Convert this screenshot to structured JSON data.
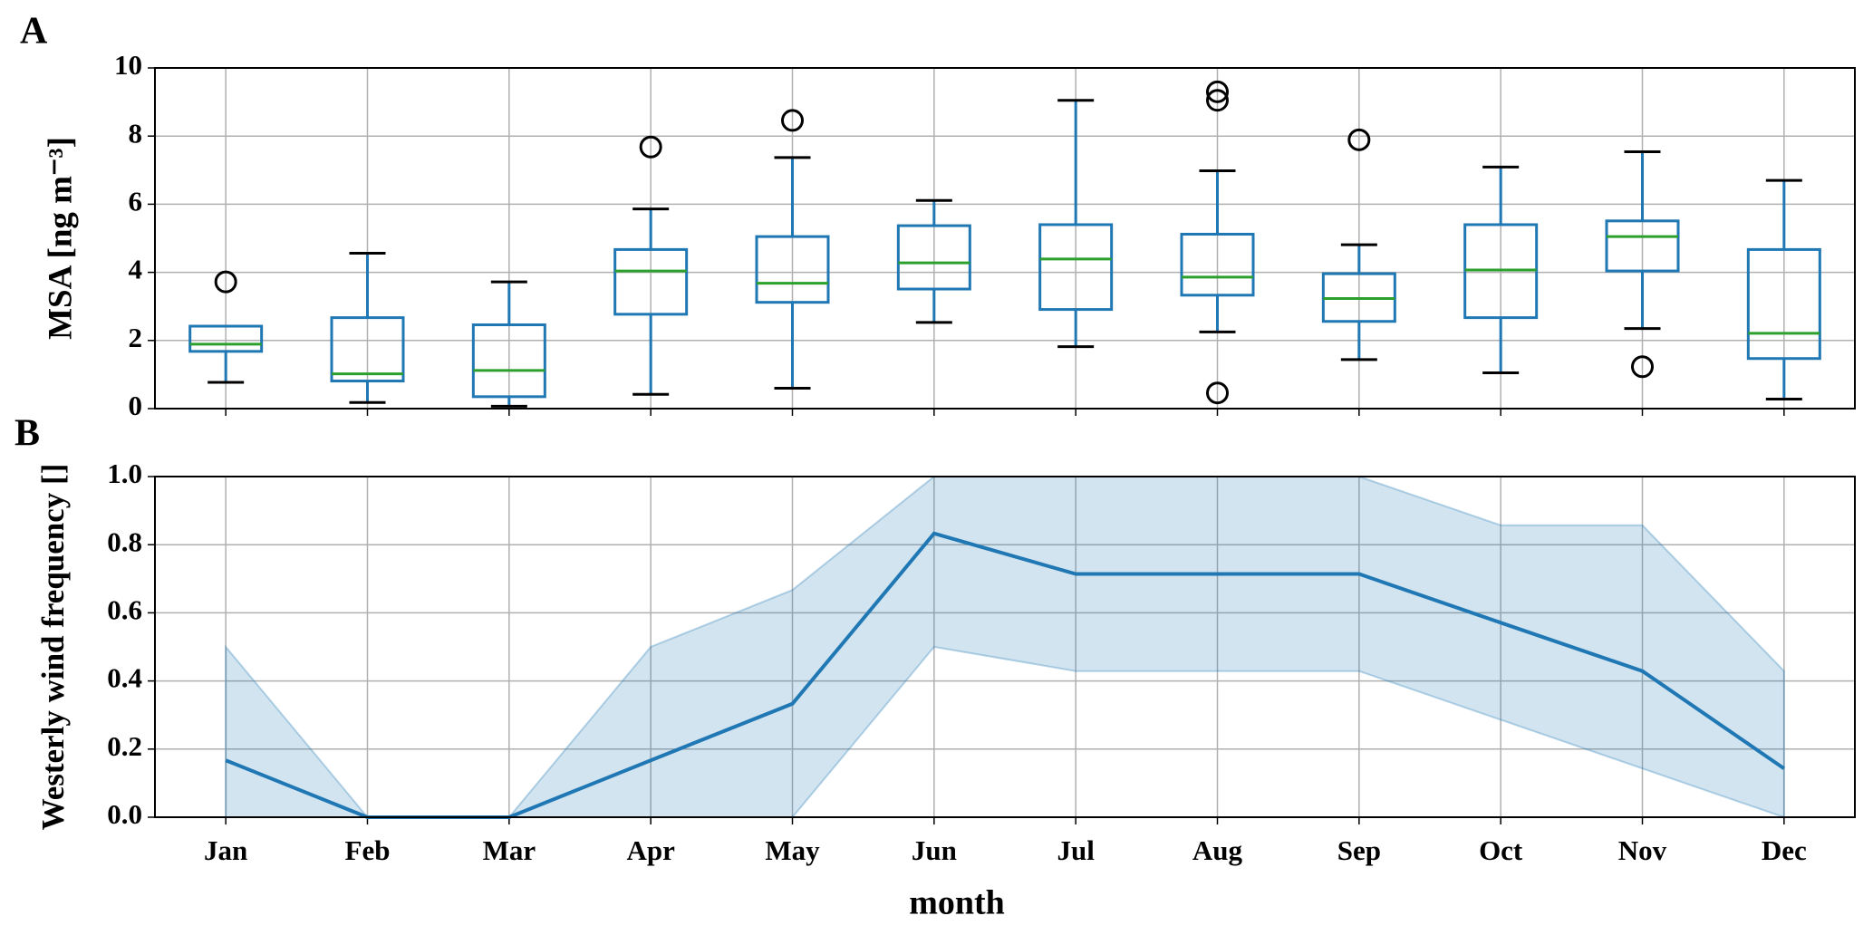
{
  "chart_data": [
    {
      "type": "box",
      "panel_label": "A",
      "ylabel": "MSA [ng m⁻³]",
      "ylim": [
        0,
        10
      ],
      "yticks": [
        0,
        2,
        4,
        6,
        8,
        10
      ],
      "grid": true,
      "color": "#1f77b4",
      "median_color": "#2ca02c",
      "cap_color": "#000000",
      "flier_color": "#000000",
      "boxes": [
        {
          "whislo": 0.77,
          "q1": 1.68,
          "med": 1.89,
          "q3": 2.42,
          "whishi": 2.42,
          "fliers": [
            3.72
          ]
        },
        {
          "whislo": 0.18,
          "q1": 0.81,
          "med": 1.02,
          "q3": 2.67,
          "whishi": 4.56,
          "fliers": []
        },
        {
          "whislo": 0.07,
          "q1": 0.35,
          "med": 1.12,
          "q3": 2.46,
          "whishi": 3.72,
          "fliers": []
        },
        {
          "whislo": 0.42,
          "q1": 2.77,
          "med": 4.04,
          "q3": 4.67,
          "whishi": 5.86,
          "fliers": [
            7.68
          ]
        },
        {
          "whislo": 0.6,
          "q1": 3.12,
          "med": 3.68,
          "q3": 5.05,
          "whishi": 7.37,
          "fliers": [
            8.46
          ]
        },
        {
          "whislo": 2.53,
          "q1": 3.51,
          "med": 4.28,
          "q3": 5.37,
          "whishi": 6.11,
          "fliers": []
        },
        {
          "whislo": 1.82,
          "q1": 2.91,
          "med": 4.39,
          "q3": 5.4,
          "whishi": 9.05,
          "fliers": []
        },
        {
          "whislo": 2.25,
          "q1": 3.33,
          "med": 3.86,
          "q3": 5.12,
          "whishi": 6.98,
          "fliers": [
            9.3,
            9.05,
            0.46
          ]
        },
        {
          "whislo": 1.44,
          "q1": 2.56,
          "med": 3.23,
          "q3": 3.96,
          "whishi": 4.81,
          "fliers": [
            7.89
          ]
        },
        {
          "whislo": 1.05,
          "q1": 2.67,
          "med": 4.07,
          "q3": 5.4,
          "whishi": 7.09,
          "fliers": []
        },
        {
          "whislo": 2.35,
          "q1": 4.04,
          "med": 5.05,
          "q3": 5.51,
          "whishi": 7.54,
          "fliers": [
            1.23
          ]
        },
        {
          "whislo": 0.28,
          "q1": 1.47,
          "med": 2.21,
          "q3": 4.67,
          "whishi": 6.7,
          "fliers": []
        }
      ]
    },
    {
      "type": "line",
      "panel_label": "B",
      "ylabel": "Westerly wind frequency []",
      "xlabel": "month",
      "categories": [
        "Jan",
        "Feb",
        "Mar",
        "Apr",
        "May",
        "Jun",
        "Jul",
        "Aug",
        "Sep",
        "Oct",
        "Nov",
        "Dec"
      ],
      "ylim": [
        0,
        1
      ],
      "yticks": [
        {
          "value": 0,
          "label": "0.0"
        },
        0.2,
        0.4,
        0.6,
        0.8,
        {
          "value": 1,
          "label": "1.0"
        }
      ],
      "grid": true,
      "color": "#1f77b4",
      "band_color": "#1f77b4",
      "values": [
        0.167,
        0,
        0,
        0.167,
        0.333,
        0.833,
        0.714,
        0.714,
        0.714,
        0.571,
        0.429,
        0.143
      ],
      "band_upper": [
        0.5,
        0,
        0,
        0.5,
        0.667,
        1.0,
        1.0,
        1.0,
        1.0,
        0.857,
        0.857,
        0.429
      ],
      "band_lower": [
        0,
        0,
        0,
        0,
        0,
        0.5,
        0.429,
        0.429,
        0.429,
        0.286,
        0.143,
        0
      ]
    }
  ]
}
